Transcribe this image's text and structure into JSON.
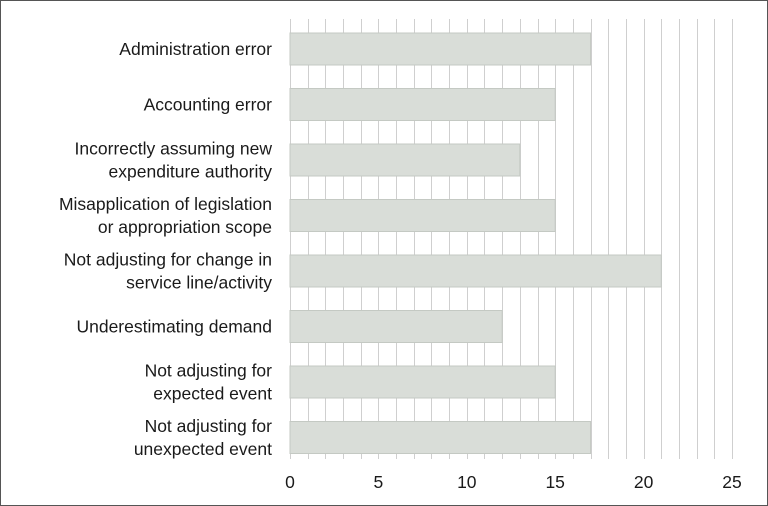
{
  "chart_data": {
    "type": "bar",
    "orientation": "horizontal",
    "categories": [
      "Administration error",
      "Accounting error",
      "Incorrectly assuming new expenditure authority",
      "Misapplication of legislation or appropriation scope",
      "Not adjusting for change in service line/activity",
      "Underestimating demand",
      "Not adjusting for expected event",
      "Not adjusting for unexpected event"
    ],
    "category_lines": [
      [
        "Administration error"
      ],
      [
        "Accounting error"
      ],
      [
        "Incorrectly assuming new",
        "expenditure authority"
      ],
      [
        "Misapplication of legislation",
        "or appropriation scope"
      ],
      [
        "Not adjusting for change in",
        "service line/activity"
      ],
      [
        "Underestimating demand"
      ],
      [
        "Not adjusting for",
        "expected event"
      ],
      [
        "Not adjusting for",
        "unexpected event"
      ]
    ],
    "values": [
      17,
      15,
      13,
      15,
      21,
      12,
      15,
      17
    ],
    "xlim": [
      0,
      25
    ],
    "xticks": [
      0,
      5,
      10,
      15,
      20,
      25
    ],
    "grid_step": 1,
    "grid": true,
    "bar_color": "#d9ddd8",
    "bar_edge_color": "#c4c9c3",
    "grid_color": "#cfcfcf"
  }
}
